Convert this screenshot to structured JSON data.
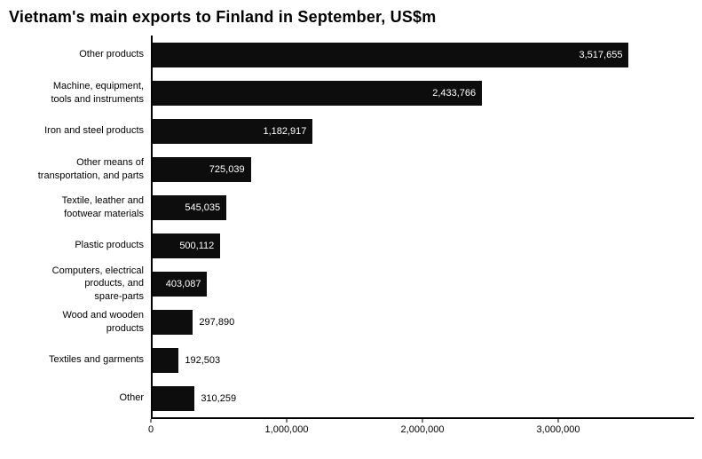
{
  "chart_data": {
    "type": "bar",
    "orientation": "horizontal",
    "title": "Vietnam's main exports to Finland in September, US$m",
    "categories": [
      "Other products",
      "Machine, equipment,\ntools and instruments",
      "Iron and steel products",
      "Other means of\ntransportation, and parts",
      "Textile, leather and\nfootwear materials",
      "Plastic products",
      "Computers, electrical\nproducts, and\nspare-parts",
      "Wood and wooden\nproducts",
      "Textiles and garments",
      "Other"
    ],
    "values": [
      3517655,
      2433766,
      1182917,
      725039,
      545035,
      500112,
      403087,
      297890,
      192503,
      310259
    ],
    "value_labels": [
      "3,517,655",
      "2,433,766",
      "1,182,917",
      "725,039",
      "545,035",
      "500,112",
      "403,087",
      "297,890",
      "192,503",
      "310,259"
    ],
    "xlim": [
      0,
      4000000
    ],
    "x_tick_values": [
      0,
      1000000,
      2000000,
      3000000
    ],
    "x_tick_labels": [
      "0",
      "1,000,000",
      "2,000,000",
      "3,000,000"
    ],
    "bar_color": "#0d0d0d",
    "inside_label_min_value": 400000,
    "grid": "off",
    "legend": "none"
  }
}
